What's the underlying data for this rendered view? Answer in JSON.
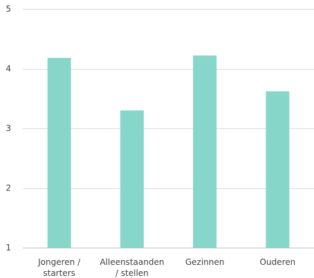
{
  "chart_data": {
    "type": "bar",
    "title": "",
    "categories": [
      [
        "Jongeren /",
        "starters"
      ],
      [
        "Alleenstaanden",
        "/ stellen"
      ],
      [
        "Gezinnen"
      ],
      [
        "Ouderen"
      ]
    ],
    "values": [
      4.18,
      3.3,
      4.22,
      3.62
    ],
    "ylim": [
      1,
      5
    ],
    "yticks": [
      "1",
      "2",
      "3",
      "4",
      "5"
    ],
    "xlabel": "",
    "ylabel": "",
    "grid": true,
    "colors": {
      "bar": "#86d7c9",
      "grid": "#d9d9d9",
      "axis": "#bfbfbf",
      "text": "#404040"
    }
  }
}
